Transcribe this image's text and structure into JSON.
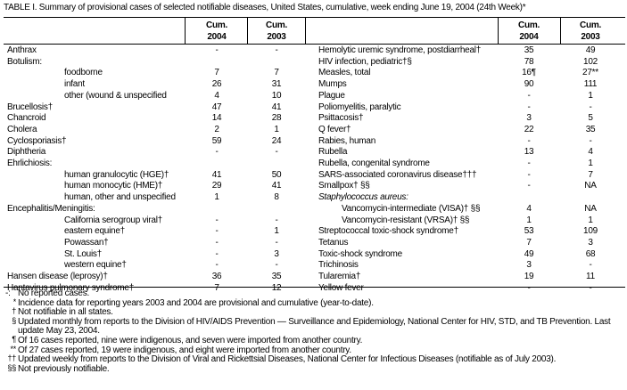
{
  "title": "TABLE I. Summary of provisional cases of selected notifiable diseases, United States, cumulative, week ending June 19, 2004 (24th Week)*",
  "header": {
    "cum_2004": [
      "Cum.",
      "2004"
    ],
    "cum_2003": [
      "Cum.",
      "2003"
    ]
  },
  "left_rows": [
    {
      "label": "Anthrax",
      "cum_2004": "-",
      "cum_2003": "-"
    },
    {
      "label": "Botulism:",
      "subrows": [
        {
          "label": "foodborne",
          "cum_2004": "7",
          "cum_2003": "7"
        },
        {
          "label": "infant",
          "cum_2004": "26",
          "cum_2003": "31"
        },
        {
          "label": "other (wound & unspecified",
          "cum_2004": "4",
          "cum_2003": "10"
        }
      ]
    },
    {
      "label": "Brucellosis†",
      "cum_2004": "47",
      "cum_2003": "41"
    },
    {
      "label": "Chancroid",
      "cum_2004": "14",
      "cum_2003": "28"
    },
    {
      "label": "Cholera",
      "cum_2004": "2",
      "cum_2003": "1"
    },
    {
      "label": "Cyclosporiasis†",
      "cum_2004": "59",
      "cum_2003": "24"
    },
    {
      "label": "Diphtheria",
      "cum_2004": "-",
      "cum_2003": "-"
    },
    {
      "label": "Ehrlichiosis:",
      "subrows": [
        {
          "label": "human granulocytic (HGE)†",
          "cum_2004": "41",
          "cum_2003": "50"
        },
        {
          "label": "human monocytic (HME)†",
          "cum_2004": "29",
          "cum_2003": "41"
        },
        {
          "label": "human, other and unspecified",
          "cum_2004": "1",
          "cum_2003": "8"
        }
      ]
    },
    {
      "label": "Encephalitis/Meningitis:",
      "subrows": [
        {
          "label": "California serogroup viral†",
          "cum_2004": "-",
          "cum_2003": "-"
        },
        {
          "label": "eastern equine†",
          "cum_2004": "-",
          "cum_2003": "1"
        },
        {
          "label": "Powassan†",
          "cum_2004": "-",
          "cum_2003": "-"
        },
        {
          "label": "St. Louis†",
          "cum_2004": "-",
          "cum_2003": "3"
        },
        {
          "label": "western equine†",
          "cum_2004": "-",
          "cum_2003": "-"
        }
      ]
    },
    {
      "label": "Hansen disease (leprosy)†",
      "cum_2004": "36",
      "cum_2003": "35"
    },
    {
      "label": "Hantavirus pulmonary syndrome†",
      "cum_2004": "7",
      "cum_2003": "12"
    }
  ],
  "right_rows": [
    {
      "label": "Hemolytic uremic syndrome, postdiarrheal†",
      "cum_2004": "35",
      "cum_2003": "49"
    },
    {
      "label": "HIV infection, pediatric†§",
      "cum_2004": "78",
      "cum_2003": "102"
    },
    {
      "label": "Measles, total",
      "cum_2004": "16¶",
      "cum_2003": "27**"
    },
    {
      "label": "Mumps",
      "cum_2004": "90",
      "cum_2003": "111"
    },
    {
      "label": "Plague",
      "cum_2004": "-",
      "cum_2003": "1"
    },
    {
      "label": "Poliomyelitis, paralytic",
      "cum_2004": "-",
      "cum_2003": "-"
    },
    {
      "label": "Psittacosis†",
      "cum_2004": "3",
      "cum_2003": "5"
    },
    {
      "label": "Q fever†",
      "cum_2004": "22",
      "cum_2003": "35"
    },
    {
      "label": "Rabies, human",
      "cum_2004": "-",
      "cum_2003": "-"
    },
    {
      "label": "Rubella",
      "cum_2004": "13",
      "cum_2003": "4"
    },
    {
      "label": "Rubella, congenital syndrome",
      "cum_2004": "-",
      "cum_2003": "1"
    },
    {
      "label": "SARS-associated coronavirus disease†††",
      "cum_2004": "-",
      "cum_2003": "7"
    },
    {
      "label": "Smallpox† §§",
      "cum_2004": "-",
      "cum_2003": "NA"
    },
    {
      "label": "Staphylococcus aureus:",
      "subrows": [
        {
          "label": "Vancomycin-intermediate (VISA)† §§",
          "cum_2004": "4",
          "cum_2003": "NA"
        },
        {
          "label": "Vancomycin-resistant (VRSA)† §§",
          "cum_2004": "1",
          "cum_2003": "1"
        }
      ]
    },
    {
      "label": "Streptococcal toxic-shock syndrome†",
      "cum_2004": "53",
      "cum_2003": "109"
    },
    {
      "label": "Tetanus",
      "cum_2004": "7",
      "cum_2003": "3"
    },
    {
      "label": "Toxic-shock syndrome",
      "cum_2004": "49",
      "cum_2003": "68"
    },
    {
      "label": "Trichinosis",
      "cum_2004": "3",
      "cum_2003": "-"
    },
    {
      "label": "Tularemia†",
      "cum_2004": "19",
      "cum_2003": "11"
    },
    {
      "label": "Yellow fever",
      "cum_2004": "-",
      "cum_2003": "-"
    }
  ],
  "footnotes": [
    {
      "symbol": "-:",
      "text": "No reported cases."
    },
    {
      "symbol": "*",
      "text": "Incidence data for reporting years 2003 and 2004 are provisional and cumulative (year-to-date)."
    },
    {
      "symbol": "†",
      "text": "Not notifiable in all states."
    },
    {
      "symbol": "§",
      "text": "Updated monthly from reports to the Division of HIV/AIDS Prevention — Surveillance and Epidemiology, National Center for HIV, STD, and TB Prevention. Last update May 23, 2004."
    },
    {
      "symbol": "¶",
      "text": "Of 16 cases reported, nine were indigenous, and seven were imported from another country."
    },
    {
      "symbol": "**",
      "text": "Of 27 cases reported, 19 were indigenous, and eight were imported from another country."
    },
    {
      "symbol": "††",
      "text": "Updated weekly from reports to the Division of Viral and Rickettsial Diseases, National Center for Infectious Diseases (notifiable as of July 2003)."
    },
    {
      "symbol": "§§",
      "text": "Not previously notifiable."
    }
  ]
}
